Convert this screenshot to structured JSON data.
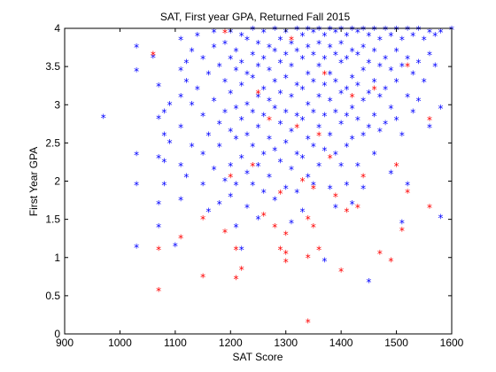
{
  "chart_data": {
    "type": "scatter",
    "title": "SAT, First year GPA, Returned Fall 2015",
    "xlabel": "SAT Score",
    "ylabel": "First Year GPA",
    "xlim": [
      900,
      1600
    ],
    "ylim": [
      0,
      4
    ],
    "xticks": [
      "900",
      "1000",
      "1100",
      "1200",
      "1300",
      "1400",
      "1500",
      "1600"
    ],
    "yticks": [
      "0",
      "0.5",
      "1",
      "1.5",
      "2",
      "2.5",
      "3",
      "3.5",
      "4"
    ],
    "marker": "*",
    "grid": false,
    "series": [
      {
        "color": "#0000ff",
        "points": [
          [
            970,
            2.83
          ],
          [
            1030,
            3.75
          ],
          [
            1030,
            3.44
          ],
          [
            1030,
            2.34
          ],
          [
            1030,
            1.95
          ],
          [
            1030,
            1.13
          ],
          [
            1060,
            3.62
          ],
          [
            1070,
            3.24
          ],
          [
            1070,
            2.82
          ],
          [
            1070,
            2.3
          ],
          [
            1070,
            1.7
          ],
          [
            1070,
            1.4
          ],
          [
            1080,
            2.9
          ],
          [
            1080,
            2.6
          ],
          [
            1080,
            2.25
          ],
          [
            1080,
            1.95
          ],
          [
            1090,
            3.0
          ],
          [
            1090,
            2.5
          ],
          [
            1100,
            1.15
          ],
          [
            1110,
            3.85
          ],
          [
            1110,
            3.45
          ],
          [
            1110,
            3.1
          ],
          [
            1110,
            2.7
          ],
          [
            1110,
            2.2
          ],
          [
            1110,
            1.75
          ],
          [
            1120,
            3.55
          ],
          [
            1120,
            3.3
          ],
          [
            1120,
            2.05
          ],
          [
            1130,
            3.7
          ],
          [
            1130,
            3.0
          ],
          [
            1130,
            2.45
          ],
          [
            1140,
            3.9
          ],
          [
            1140,
            3.2
          ],
          [
            1150,
            3.6
          ],
          [
            1150,
            2.85
          ],
          [
            1150,
            2.35
          ],
          [
            1150,
            1.95
          ],
          [
            1160,
            3.4
          ],
          [
            1160,
            2.6
          ],
          [
            1160,
            1.6
          ],
          [
            1170,
            3.95
          ],
          [
            1170,
            3.75
          ],
          [
            1170,
            3.05
          ],
          [
            1170,
            2.15
          ],
          [
            1180,
            3.5
          ],
          [
            1180,
            2.75
          ],
          [
            1180,
            2.45
          ],
          [
            1180,
            1.7
          ],
          [
            1190,
            3.8
          ],
          [
            1190,
            3.3
          ],
          [
            1190,
            2.9
          ],
          [
            1190,
            2.0
          ],
          [
            1200,
            3.95
          ],
          [
            1200,
            3.6
          ],
          [
            1200,
            3.15
          ],
          [
            1200,
            2.65
          ],
          [
            1200,
            2.2
          ],
          [
            1200,
            1.8
          ],
          [
            1210,
            3.7
          ],
          [
            1210,
            3.45
          ],
          [
            1210,
            2.95
          ],
          [
            1210,
            2.55
          ],
          [
            1210,
            1.95
          ],
          [
            1210,
            1.4
          ],
          [
            1220,
            3.9
          ],
          [
            1220,
            3.55
          ],
          [
            1220,
            3.25
          ],
          [
            1220,
            2.8
          ],
          [
            1220,
            2.3
          ],
          [
            1220,
            1.1
          ],
          [
            1230,
            3.85
          ],
          [
            1230,
            3.4
          ],
          [
            1230,
            3.0
          ],
          [
            1230,
            2.6
          ],
          [
            1230,
            2.1
          ],
          [
            1230,
            1.65
          ],
          [
            1240,
            3.98
          ],
          [
            1240,
            3.65
          ],
          [
            1240,
            3.35
          ],
          [
            1240,
            2.9
          ],
          [
            1240,
            2.45
          ],
          [
            1240,
            1.95
          ],
          [
            1250,
            3.8
          ],
          [
            1250,
            3.5
          ],
          [
            1250,
            3.1
          ],
          [
            1250,
            2.7
          ],
          [
            1250,
            2.2
          ],
          [
            1250,
            1.5
          ],
          [
            1260,
            3.95
          ],
          [
            1260,
            3.6
          ],
          [
            1260,
            3.2
          ],
          [
            1260,
            2.85
          ],
          [
            1260,
            2.35
          ],
          [
            1260,
            1.85
          ],
          [
            1270,
            3.75
          ],
          [
            1270,
            3.45
          ],
          [
            1270,
            3.05
          ],
          [
            1270,
            2.55
          ],
          [
            1270,
            2.05
          ],
          [
            1280,
            3.98
          ],
          [
            1280,
            3.7
          ],
          [
            1280,
            3.3
          ],
          [
            1280,
            2.95
          ],
          [
            1280,
            2.4
          ],
          [
            1280,
            1.75
          ],
          [
            1290,
            3.85
          ],
          [
            1290,
            3.55
          ],
          [
            1290,
            3.15
          ],
          [
            1290,
            2.75
          ],
          [
            1290,
            2.25
          ],
          [
            1300,
            3.95
          ],
          [
            1300,
            3.65
          ],
          [
            1300,
            3.35
          ],
          [
            1300,
            2.9
          ],
          [
            1300,
            2.5
          ],
          [
            1300,
            1.9
          ],
          [
            1310,
            3.8
          ],
          [
            1310,
            3.5
          ],
          [
            1310,
            3.1
          ],
          [
            1310,
            2.65
          ],
          [
            1310,
            2.15
          ],
          [
            1310,
            1.45
          ],
          [
            1320,
            3.98
          ],
          [
            1320,
            3.7
          ],
          [
            1320,
            3.25
          ],
          [
            1320,
            2.85
          ],
          [
            1320,
            2.35
          ],
          [
            1320,
            1.85
          ],
          [
            1330,
            3.9
          ],
          [
            1330,
            3.6
          ],
          [
            1330,
            3.2
          ],
          [
            1330,
            2.8
          ],
          [
            1330,
            2.3
          ],
          [
            1330,
            1.6
          ],
          [
            1340,
            3.98
          ],
          [
            1340,
            3.75
          ],
          [
            1340,
            3.4
          ],
          [
            1340,
            3.0
          ],
          [
            1340,
            2.55
          ],
          [
            1340,
            2.05
          ],
          [
            1350,
            3.95
          ],
          [
            1350,
            3.65
          ],
          [
            1350,
            3.3
          ],
          [
            1350,
            2.9
          ],
          [
            1350,
            2.45
          ],
          [
            1350,
            1.95
          ],
          [
            1360,
            3.98
          ],
          [
            1360,
            3.8
          ],
          [
            1360,
            3.5
          ],
          [
            1360,
            3.1
          ],
          [
            1360,
            2.7
          ],
          [
            1360,
            2.2
          ],
          [
            1370,
            3.9
          ],
          [
            1370,
            3.6
          ],
          [
            1370,
            3.25
          ],
          [
            1370,
            2.85
          ],
          [
            1370,
            2.4
          ],
          [
            1370,
            0.95
          ],
          [
            1380,
            3.98
          ],
          [
            1380,
            3.75
          ],
          [
            1380,
            3.4
          ],
          [
            1380,
            3.05
          ],
          [
            1380,
            2.6
          ],
          [
            1380,
            1.9
          ],
          [
            1390,
            3.95
          ],
          [
            1390,
            3.65
          ],
          [
            1390,
            3.3
          ],
          [
            1390,
            2.9
          ],
          [
            1390,
            2.35
          ],
          [
            1390,
            1.65
          ],
          [
            1400,
            3.98
          ],
          [
            1400,
            3.8
          ],
          [
            1400,
            3.55
          ],
          [
            1400,
            3.15
          ],
          [
            1400,
            2.75
          ],
          [
            1400,
            2.2
          ],
          [
            1410,
            3.9
          ],
          [
            1410,
            3.6
          ],
          [
            1410,
            3.2
          ],
          [
            1410,
            2.85
          ],
          [
            1410,
            2.45
          ],
          [
            1410,
            1.95
          ],
          [
            1420,
            3.98
          ],
          [
            1420,
            3.7
          ],
          [
            1420,
            3.35
          ],
          [
            1420,
            2.95
          ],
          [
            1420,
            2.55
          ],
          [
            1420,
            1.7
          ],
          [
            1430,
            3.95
          ],
          [
            1430,
            3.65
          ],
          [
            1430,
            3.25
          ],
          [
            1430,
            2.8
          ],
          [
            1430,
            2.2
          ],
          [
            1440,
            3.98
          ],
          [
            1440,
            3.75
          ],
          [
            1440,
            3.45
          ],
          [
            1440,
            3.05
          ],
          [
            1440,
            2.6
          ],
          [
            1440,
            1.9
          ],
          [
            1450,
            3.9
          ],
          [
            1450,
            3.55
          ],
          [
            1450,
            3.15
          ],
          [
            1450,
            2.7
          ],
          [
            1450,
            0.68
          ],
          [
            1460,
            3.98
          ],
          [
            1460,
            3.7
          ],
          [
            1460,
            3.3
          ],
          [
            1460,
            2.85
          ],
          [
            1460,
            2.35
          ],
          [
            1470,
            3.85
          ],
          [
            1470,
            3.5
          ],
          [
            1470,
            3.1
          ],
          [
            1470,
            2.65
          ],
          [
            1480,
            3.98
          ],
          [
            1480,
            3.6
          ],
          [
            1480,
            3.2
          ],
          [
            1480,
            2.75
          ],
          [
            1490,
            3.9
          ],
          [
            1490,
            3.45
          ],
          [
            1490,
            2.95
          ],
          [
            1490,
            2.1
          ],
          [
            1500,
            3.98
          ],
          [
            1500,
            3.7
          ],
          [
            1500,
            3.3
          ],
          [
            1500,
            2.8
          ],
          [
            1510,
            3.85
          ],
          [
            1510,
            3.5
          ],
          [
            1510,
            2.6
          ],
          [
            1510,
            1.45
          ],
          [
            1520,
            3.98
          ],
          [
            1520,
            3.6
          ],
          [
            1520,
            3.1
          ],
          [
            1520,
            1.95
          ],
          [
            1530,
            3.9
          ],
          [
            1530,
            3.4
          ],
          [
            1530,
            2.9
          ],
          [
            1540,
            3.98
          ],
          [
            1540,
            3.55
          ],
          [
            1540,
            3.05
          ],
          [
            1550,
            3.85
          ],
          [
            1550,
            3.3
          ],
          [
            1560,
            3.95
          ],
          [
            1560,
            3.65
          ],
          [
            1560,
            2.7
          ],
          [
            1570,
            3.9
          ],
          [
            1570,
            3.5
          ],
          [
            1580,
            3.95
          ],
          [
            1580,
            2.95
          ],
          [
            1580,
            1.52
          ],
          [
            1600,
            3.98
          ]
        ]
      },
      {
        "color": "#ff0000",
        "points": [
          [
            1060,
            3.65
          ],
          [
            1070,
            1.1
          ],
          [
            1070,
            0.56
          ],
          [
            1110,
            1.25
          ],
          [
            1150,
            1.5
          ],
          [
            1150,
            0.74
          ],
          [
            1190,
            3.94
          ],
          [
            1190,
            1.33
          ],
          [
            1200,
            2.05
          ],
          [
            1210,
            0.72
          ],
          [
            1210,
            1.1
          ],
          [
            1220,
            0.84
          ],
          [
            1240,
            2.2
          ],
          [
            1250,
            3.15
          ],
          [
            1260,
            1.55
          ],
          [
            1270,
            2.8
          ],
          [
            1280,
            1.4
          ],
          [
            1290,
            1.84
          ],
          [
            1290,
            1.1
          ],
          [
            1300,
            1.3
          ],
          [
            1300,
            1.05
          ],
          [
            1300,
            0.94
          ],
          [
            1310,
            3.85
          ],
          [
            1320,
            2.7
          ],
          [
            1330,
            2.0
          ],
          [
            1340,
            1.5
          ],
          [
            1340,
            1.0
          ],
          [
            1340,
            0.15
          ],
          [
            1350,
            1.9
          ],
          [
            1350,
            1.4
          ],
          [
            1360,
            1.1
          ],
          [
            1360,
            2.6
          ],
          [
            1370,
            3.4
          ],
          [
            1380,
            2.3
          ],
          [
            1390,
            1.8
          ],
          [
            1400,
            0.82
          ],
          [
            1410,
            1.6
          ],
          [
            1420,
            3.1
          ],
          [
            1430,
            1.65
          ],
          [
            1440,
            2.05
          ],
          [
            1460,
            3.2
          ],
          [
            1470,
            1.05
          ],
          [
            1490,
            0.95
          ],
          [
            1500,
            2.2
          ],
          [
            1510,
            1.35
          ],
          [
            1520,
            3.5
          ],
          [
            1520,
            1.85
          ],
          [
            1560,
            2.8
          ],
          [
            1560,
            1.65
          ]
        ]
      }
    ]
  }
}
